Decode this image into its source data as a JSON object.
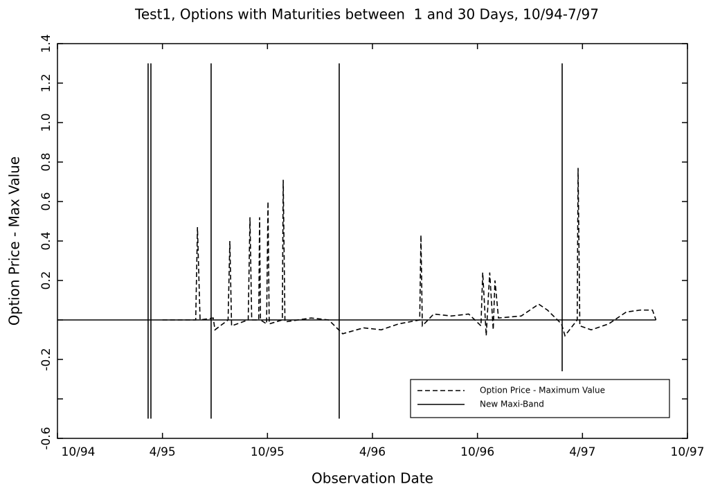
{
  "chart_data": {
    "type": "line",
    "title": "Test1, Options with Maturities between  1 and 30 Days, 10/94-7/97",
    "xlabel": "Observation Date",
    "ylabel": "Option Price - Max Value",
    "xlim": [
      0,
      36
    ],
    "xticks": [
      {
        "value": 0,
        "label": "10/94"
      },
      {
        "value": 6,
        "label": "4/95"
      },
      {
        "value": 12,
        "label": "10/95"
      },
      {
        "value": 18,
        "label": "4/96"
      },
      {
        "value": 24,
        "label": "10/96"
      },
      {
        "value": 30,
        "label": "4/97"
      },
      {
        "value": 36,
        "label": "10/97"
      }
    ],
    "ylim": [
      -0.6,
      1.4
    ],
    "yticks": [
      {
        "value": -0.6,
        "label": "-0.6"
      },
      {
        "value": -0.2,
        "label": "-0.2"
      },
      {
        "value": 0.2,
        "label": "0.2"
      },
      {
        "value": 0.4,
        "label": "0.4"
      },
      {
        "value": 0.6,
        "label": "0.6"
      },
      {
        "value": 0.8,
        "label": "0.8"
      },
      {
        "value": 1,
        "label": "1.0"
      },
      {
        "value": 1.2,
        "label": "1.2"
      },
      {
        "value": 1.4,
        "label": "1.4"
      }
    ],
    "yticks_minor": [
      0,
      -0.4
    ],
    "legend": "lower right",
    "series": [
      {
        "name": "Option Price - Maximum Value",
        "color": "#000000",
        "dash": true,
        "x": [
          6.0,
          7.9,
          8.0,
          8.15,
          8.9,
          9.0,
          9.75,
          9.85,
          9.95,
          10.9,
          11.0,
          11.1,
          11.5,
          11.55,
          11.6,
          11.95,
          12.03,
          12.1,
          12.85,
          12.9,
          13.0,
          14.5,
          15.5,
          16.3,
          17.5,
          18.5,
          19.5,
          20.7,
          20.77,
          20.85,
          21.5,
          22.5,
          23.5,
          24.2,
          24.3,
          24.5,
          24.7,
          24.9,
          25.0,
          25.2,
          26.5,
          27.5,
          28.0,
          28.8,
          29.0,
          29.7,
          29.75,
          29.85,
          30.5,
          31.5,
          32.5,
          33.3,
          34.0,
          34.2
        ],
        "values": [
          0,
          0,
          0.47,
          0,
          0.01,
          -0.05,
          0,
          0.4,
          -0.03,
          0,
          0.52,
          0,
          0,
          0.52,
          0,
          -0.02,
          0.6,
          -0.02,
          0,
          0.71,
          -0.01,
          0.01,
          0,
          -0.07,
          -0.04,
          -0.05,
          -0.02,
          0,
          0.43,
          -0.03,
          0.03,
          0.02,
          0.03,
          -0.03,
          0.24,
          -0.08,
          0.24,
          -0.05,
          0.2,
          0.01,
          0.02,
          0.08,
          0.05,
          -0.02,
          -0.08,
          0,
          0.77,
          -0.03,
          -0.05,
          -0.02,
          0.04,
          0.05,
          0.05,
          0
        ]
      },
      {
        "name": "New Maxi-Band",
        "color": "#000000",
        "dash": false,
        "x": [
          0,
          5.18,
          5.18,
          5.18,
          5.18,
          5.34,
          5.34,
          5.34,
          5.34,
          8.78,
          8.78,
          8.78,
          8.78,
          16.1,
          16.1,
          16.1,
          16.1,
          28.84,
          28.84,
          28.84,
          28.84,
          34.2
        ],
        "values": [
          0,
          0,
          1.3,
          -0.5,
          0,
          0,
          1.3,
          -0.5,
          0,
          0,
          1.3,
          -0.5,
          0,
          0,
          1.3,
          -0.5,
          0,
          0,
          1.3,
          -0.26,
          0,
          0
        ]
      }
    ]
  }
}
